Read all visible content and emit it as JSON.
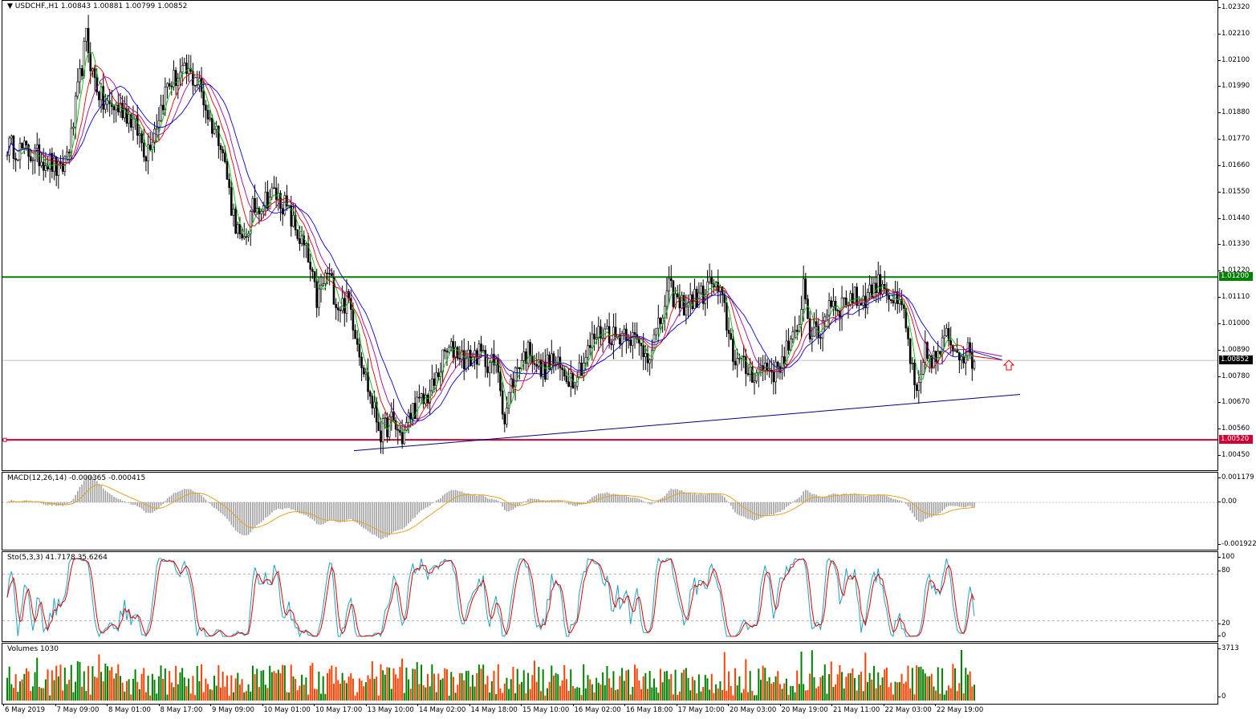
{
  "chart_title": "USDCHF.,H1",
  "ohlc_text": "1.00843 1.00881 1.00799 1.00852",
  "colors": {
    "bull": "#000000",
    "bear": "#000000",
    "support": "#008000",
    "resistance": "#cc0033",
    "ma_green": "#00c000",
    "ma_red": "#e00000",
    "ma_purple": "#a000a0",
    "ma_blue": "#0000cc",
    "macd_hist": "#a0a0a0",
    "macd_signal": "#e8a020",
    "sto_main": "#20a0c0",
    "sto_signal": "#e00000",
    "vol_up": "#008000",
    "vol_down": "#ff4000",
    "trendline": "#000080",
    "price_line": "#c0c0c0",
    "badge_support": "#008000",
    "badge_resistance": "#cc0033",
    "badge_price": "#000000",
    "arrow": "#e00000"
  },
  "price_axis": {
    "ticks": [
      "1.02320",
      "1.02210",
      "1.02100",
      "1.01990",
      "1.01880",
      "1.01770",
      "1.01660",
      "1.01550",
      "1.01440",
      "1.01330",
      "1.01220",
      "1.01110",
      "1.01000",
      "1.00890",
      "1.00780",
      "1.00670",
      "1.00560",
      "1.00450"
    ],
    "min": 1.004,
    "max": 1.0234,
    "current_price": "1.00852",
    "support_label": "1.01200",
    "resistance_label": "1.00520"
  },
  "levels": {
    "green_line": 1.012,
    "red_line": 1.0052,
    "current": 1.00852
  },
  "x_labels": [
    "6 May 2019",
    "7 May 09:00",
    "8 May 01:00",
    "8 May 17:00",
    "9 May 09:00",
    "10 May 01:00",
    "10 May 17:00",
    "13 May 10:00",
    "14 May 02:00",
    "14 May 18:00",
    "15 May 10:00",
    "16 May 02:00",
    "16 May 18:00",
    "17 May 10:00",
    "20 May 03:00",
    "20 May 19:00",
    "21 May 11:00",
    "22 May 03:00",
    "22 May 19:00"
  ],
  "macd": {
    "label": "MACD(12,26,14) -0.000365 -0.000415",
    "ticks": [
      "0.001179",
      "0.00",
      "-0.001922"
    ]
  },
  "stochastic": {
    "label": "Sto(5,3,3) 41.7178 35.6264",
    "ticks": [
      "100",
      "80",
      "20",
      "0"
    ]
  },
  "volumes": {
    "label": "Volumes 1030",
    "ticks": [
      "3713",
      "0"
    ]
  },
  "chart_data": [
    {
      "type": "candlestick",
      "title": "USDCHF.,H1",
      "ylim": [
        1.004,
        1.0234
      ],
      "keypoints": [
        [
          0,
          1.0175
        ],
        [
          10,
          1.0172
        ],
        [
          20,
          1.0168
        ],
        [
          25,
          1.0163
        ],
        [
          30,
          1.0178
        ],
        [
          33,
          1.0197
        ],
        [
          37,
          1.022
        ],
        [
          40,
          1.0205
        ],
        [
          45,
          1.0192
        ],
        [
          55,
          1.019
        ],
        [
          60,
          1.0183
        ],
        [
          65,
          1.0172
        ],
        [
          70,
          1.0185
        ],
        [
          75,
          1.02
        ],
        [
          80,
          1.0204
        ],
        [
          85,
          1.0205
        ],
        [
          90,
          1.02
        ],
        [
          95,
          1.0185
        ],
        [
          100,
          1.0178
        ],
        [
          105,
          1.015
        ],
        [
          110,
          1.0132
        ],
        [
          115,
          1.0148
        ],
        [
          120,
          1.0152
        ],
        [
          125,
          1.0155
        ],
        [
          130,
          1.015
        ],
        [
          135,
          1.014
        ],
        [
          140,
          1.013
        ],
        [
          145,
          1.011
        ],
        [
          150,
          1.0122
        ],
        [
          155,
          1.0108
        ],
        [
          160,
          1.011
        ],
        [
          165,
          1.009
        ],
        [
          170,
          1.007
        ],
        [
          175,
          1.0055
        ],
        [
          180,
          1.006
        ],
        [
          185,
          1.0053
        ],
        [
          190,
          1.0065
        ],
        [
          195,
          1.0068
        ],
        [
          200,
          1.0075
        ],
        [
          205,
          1.0088
        ],
        [
          210,
          1.009
        ],
        [
          215,
          1.0085
        ],
        [
          220,
          1.0088
        ],
        [
          225,
          1.0085
        ],
        [
          230,
          1.0082
        ],
        [
          233,
          1.006
        ],
        [
          236,
          1.0075
        ],
        [
          240,
          1.0085
        ],
        [
          245,
          1.009
        ],
        [
          250,
          1.008
        ],
        [
          255,
          1.0085
        ],
        [
          260,
          1.008
        ],
        [
          265,
          1.0078
        ],
        [
          270,
          1.0085
        ],
        [
          275,
          1.0095
        ],
        [
          280,
          1.0098
        ],
        [
          285,
          1.0095
        ],
        [
          290,
          1.0098
        ],
        [
          295,
          1.0092
        ],
        [
          300,
          1.0088
        ],
        [
          305,
          1.0098
        ],
        [
          310,
          1.0115
        ],
        [
          315,
          1.0108
        ],
        [
          320,
          1.011
        ],
        [
          325,
          1.0112
        ],
        [
          330,
          1.0118
        ],
        [
          335,
          1.011
        ],
        [
          340,
          1.0088
        ],
        [
          345,
          1.0082
        ],
        [
          350,
          1.008
        ],
        [
          355,
          1.0083
        ],
        [
          360,
          1.008
        ],
        [
          365,
          1.009
        ],
        [
          370,
          1.0095
        ],
        [
          373,
          1.0118
        ],
        [
          376,
          1.0098
        ],
        [
          380,
          1.0095
        ],
        [
          385,
          1.011
        ],
        [
          390,
          1.0108
        ],
        [
          395,
          1.0112
        ],
        [
          400,
          1.011
        ],
        [
          405,
          1.0115
        ],
        [
          410,
          1.0118
        ],
        [
          415,
          1.011
        ],
        [
          420,
          1.0105
        ],
        [
          424,
          1.008
        ],
        [
          426,
          1.0068
        ],
        [
          430,
          1.0088
        ],
        [
          435,
          1.0085
        ],
        [
          440,
          1.0095
        ],
        [
          445,
          1.009
        ],
        [
          450,
          1.0088
        ],
        [
          453,
          1.0085
        ]
      ],
      "series_ma": [
        "green",
        "red",
        "purple",
        "blue"
      ],
      "support_level": 1.012,
      "resistance_level": 1.0052,
      "current": 1.00852
    },
    {
      "type": "histogram",
      "title": "MACD(12,26,14)",
      "values_text": "-0.000365 -0.000415"
    },
    {
      "type": "line",
      "title": "Sto(5,3,3)",
      "values_text": "41.7178 35.6264",
      "ylim": [
        0,
        100
      ],
      "levels": [
        20,
        80
      ]
    },
    {
      "type": "bar",
      "title": "Volumes",
      "values_text": "1030",
      "ylim": [
        0,
        3713
      ]
    }
  ]
}
